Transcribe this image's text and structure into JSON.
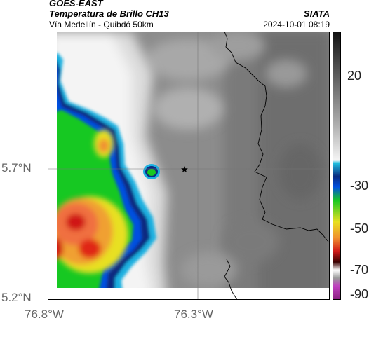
{
  "header": {
    "title_line1": "GOES-EAST",
    "title_line2": "Temperatura de Brillo CH13",
    "subtitle": "Vía Medellín - Quibdó 50km",
    "brand": "SIATA",
    "datetime": "2024-10-01 08:19"
  },
  "axes": {
    "y_ticks": [
      "5.7°N",
      "5.2°N"
    ],
    "x_ticks": [
      "76.8°W",
      "76.3°W"
    ]
  },
  "colorbar": {
    "ticks": [
      "20",
      "-30",
      "-50",
      "-70",
      "-90"
    ]
  },
  "colors": {
    "background_gray": "#8a8a8a",
    "cloud_white": "#f2f2f2",
    "deep_convection_red": "#e0301e",
    "marker": "#000000"
  },
  "map": {
    "marker_icon": "star-icon"
  }
}
